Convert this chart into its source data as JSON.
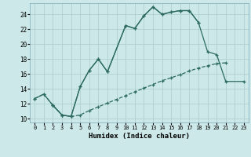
{
  "title": "",
  "xlabel": "Humidex (Indice chaleur)",
  "bg_color": "#cce8e8",
  "grid_color": "#aacccc",
  "line_color": "#2d6b5e",
  "xlim": [
    -0.5,
    23.5
  ],
  "ylim": [
    9.5,
    25.5
  ],
  "xticks": [
    0,
    1,
    2,
    3,
    4,
    5,
    6,
    7,
    8,
    9,
    10,
    11,
    12,
    13,
    14,
    15,
    16,
    17,
    18,
    19,
    20,
    21,
    22,
    23
  ],
  "yticks": [
    10,
    12,
    14,
    16,
    18,
    20,
    22,
    24
  ],
  "line1_x": [
    0,
    1,
    2,
    3,
    4,
    5,
    6,
    7,
    8,
    10,
    11,
    12,
    13,
    14,
    15,
    16,
    17,
    18
  ],
  "line1_y": [
    12.7,
    13.3,
    11.8,
    10.5,
    10.3,
    14.3,
    16.5,
    18.0,
    16.3,
    22.5,
    22.1,
    23.8,
    25.0,
    24.0,
    24.3,
    24.5,
    24.5,
    22.9
  ],
  "line2_x": [
    2,
    3,
    4,
    5,
    6,
    7,
    8,
    10,
    11,
    12,
    13,
    14,
    15,
    16,
    17,
    18,
    19,
    20,
    21,
    23
  ],
  "line2_y": [
    11.8,
    10.5,
    10.3,
    14.3,
    16.5,
    18.0,
    16.3,
    22.5,
    22.1,
    23.8,
    25.0,
    24.0,
    24.3,
    24.5,
    24.5,
    22.9,
    19.0,
    18.6,
    15.0,
    15.0
  ],
  "line3_x": [
    0,
    1,
    2,
    3,
    4,
    5,
    6,
    7,
    8,
    9,
    10,
    11,
    12,
    13,
    14,
    15,
    16,
    17,
    18,
    19,
    20,
    21
  ],
  "line3_y": [
    12.7,
    13.3,
    11.8,
    10.5,
    10.3,
    10.5,
    11.1,
    11.6,
    12.1,
    12.6,
    13.1,
    13.6,
    14.1,
    14.6,
    15.1,
    15.5,
    15.9,
    16.4,
    16.8,
    17.1,
    17.4,
    17.5
  ]
}
